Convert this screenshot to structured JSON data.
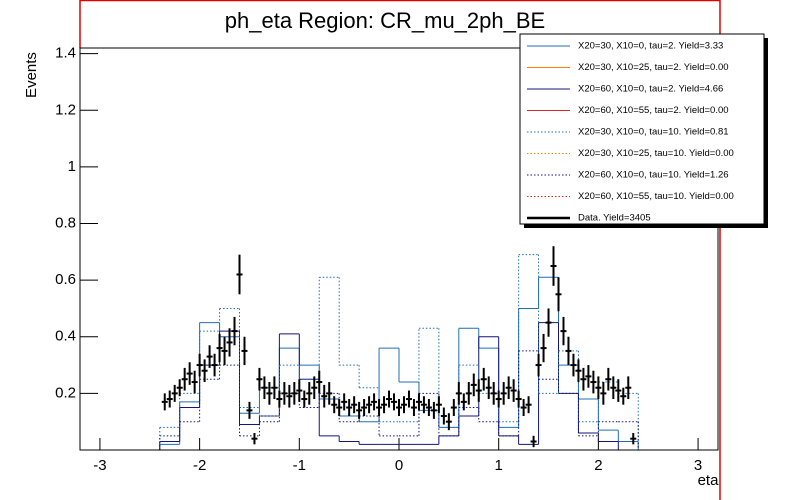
{
  "chart_data": {
    "type": "histogram",
    "title": "ph_eta Region: CR_mu_2ph_BE",
    "x_label": "eta",
    "y_label": "Events",
    "xlim": [
      -3.2,
      3.2
    ],
    "ylim": [
      0,
      1.42
    ],
    "xticks": [
      -3,
      -2,
      -1,
      0,
      1,
      2,
      3
    ],
    "yticks": [
      0.2,
      0.4,
      0.6,
      0.8,
      1,
      1.2,
      1.4
    ],
    "legend": "top-right",
    "bins": [
      -2.6,
      -2.4,
      -2.2,
      -2.0,
      -1.8,
      -1.6,
      -1.4,
      -1.2,
      -1.0,
      -0.8,
      -0.6,
      -0.4,
      -0.2,
      0.0,
      0.2,
      0.4,
      0.6,
      0.8,
      1.0,
      1.2,
      1.4,
      1.6,
      1.8,
      2.0,
      2.2,
      2.4,
      2.6
    ],
    "series": [
      {
        "name": "X20=30, X10=0, tau=2. Yield=3.33",
        "color": "#1f6fb4",
        "dashed": false,
        "values": [
          0,
          0.02,
          0.17,
          0.45,
          0.4,
          0.13,
          0.22,
          0.36,
          0.3,
          0.18,
          0.12,
          0.1,
          0.36,
          0.24,
          0.14,
          0.08,
          0.43,
          0.36,
          0.08,
          0.5,
          0.61,
          0.3,
          0.18,
          0.07,
          0.03,
          0
        ]
      },
      {
        "name": "X20=30, X10=25, tau=2. Yield=0.00",
        "color": "#ff7f0e",
        "dashed": false,
        "values": [
          0,
          0,
          0,
          0,
          0,
          0,
          0,
          0,
          0,
          0,
          0,
          0,
          0,
          0,
          0,
          0,
          0,
          0,
          0,
          0,
          0,
          0,
          0,
          0,
          0,
          0
        ]
      },
      {
        "name": "X20=60, X10=0, tau=2. Yield=4.66",
        "color": "#14147a",
        "dashed": false,
        "values": [
          0,
          0.03,
          0.15,
          0.3,
          0.42,
          0.09,
          0.12,
          0.41,
          0.25,
          0.05,
          0.03,
          0.02,
          0.02,
          0.02,
          0.02,
          0.05,
          0.12,
          0.4,
          0.05,
          0.02,
          0.45,
          0.2,
          0.06,
          0.03,
          0,
          0
        ]
      },
      {
        "name": "X20=60, X10=55, tau=2. Yield=0.00",
        "color": "#d62728",
        "dashed": false,
        "values": [
          0,
          0,
          0,
          0,
          0,
          0,
          0,
          0,
          0,
          0,
          0,
          0,
          0,
          0,
          0,
          0,
          0,
          0,
          0,
          0,
          0,
          0,
          0,
          0,
          0,
          0
        ]
      },
      {
        "name": "X20=30, X10=0, tau=10. Yield=0.81",
        "color": "#1f6fb4",
        "dashed": true,
        "values": [
          0,
          0.08,
          0.2,
          0.42,
          0.5,
          0.15,
          0.12,
          0.3,
          0.25,
          0.61,
          0.3,
          0.22,
          0.1,
          0.1,
          0.43,
          0.08,
          0.3,
          0.2,
          0.1,
          0.69,
          0.2,
          0.35,
          0.1,
          0.24,
          0.2,
          0
        ]
      },
      {
        "name": "X20=30, X10=25, tau=10. Yield=0.00",
        "color": "#ff7f0e",
        "dashed": true,
        "values": [
          0,
          0,
          0,
          0,
          0,
          0,
          0,
          0,
          0,
          0,
          0,
          0,
          0,
          0,
          0,
          0,
          0,
          0,
          0,
          0,
          0,
          0,
          0,
          0,
          0,
          0
        ]
      },
      {
        "name": "X20=60, X10=0, tau=10. Yield=1.26",
        "color": "#14147a",
        "dashed": true,
        "values": [
          0,
          0.05,
          0.1,
          0.25,
          0.3,
          0.05,
          0.1,
          0.2,
          0.15,
          0.2,
          0.1,
          0.12,
          0.05,
          0.05,
          0.2,
          0.05,
          0.15,
          0.1,
          0.05,
          0.35,
          0.25,
          0.2,
          0.05,
          0.1,
          0.1,
          0
        ]
      },
      {
        "name": "X20=60, X10=55, tau=10. Yield=0.00",
        "color": "#d62728",
        "dashed": true,
        "values": [
          0,
          0,
          0,
          0,
          0,
          0,
          0,
          0,
          0,
          0,
          0,
          0,
          0,
          0,
          0,
          0,
          0,
          0,
          0,
          0,
          0,
          0,
          0,
          0,
          0,
          0
        ]
      }
    ],
    "data": {
      "name": "Data. Yield=3405",
      "color": "#000000",
      "x": [
        -2.35,
        -2.3,
        -2.25,
        -2.2,
        -2.15,
        -2.1,
        -2.05,
        -2.0,
        -1.95,
        -1.9,
        -1.85,
        -1.8,
        -1.75,
        -1.7,
        -1.65,
        -1.6,
        -1.55,
        -1.5,
        -1.45,
        -1.4,
        -1.35,
        -1.3,
        -1.25,
        -1.2,
        -1.15,
        -1.1,
        -1.05,
        -1.0,
        -0.95,
        -0.9,
        -0.85,
        -0.8,
        -0.75,
        -0.7,
        -0.65,
        -0.6,
        -0.55,
        -0.5,
        -0.45,
        -0.4,
        -0.35,
        -0.3,
        -0.25,
        -0.2,
        -0.15,
        -0.1,
        -0.05,
        0,
        0.05,
        0.1,
        0.15,
        0.2,
        0.25,
        0.3,
        0.35,
        0.4,
        0.45,
        0.5,
        0.55,
        0.6,
        0.65,
        0.7,
        0.75,
        0.8,
        0.85,
        0.9,
        0.95,
        1.0,
        1.05,
        1.1,
        1.15,
        1.2,
        1.25,
        1.3,
        1.35,
        1.4,
        1.45,
        1.5,
        1.55,
        1.6,
        1.65,
        1.7,
        1.75,
        1.8,
        1.85,
        1.9,
        1.95,
        2.0,
        2.05,
        2.1,
        2.15,
        2.2,
        2.25,
        2.3,
        2.35
      ],
      "values": [
        0.17,
        0.18,
        0.2,
        0.22,
        0.25,
        0.27,
        0.24,
        0.3,
        0.28,
        0.33,
        0.3,
        0.36,
        0.35,
        0.38,
        0.42,
        0.62,
        0.35,
        0.14,
        0.04,
        0.25,
        0.22,
        0.2,
        0.22,
        0.18,
        0.2,
        0.19,
        0.2,
        0.21,
        0.18,
        0.2,
        0.22,
        0.24,
        0.19,
        0.2,
        0.16,
        0.15,
        0.17,
        0.15,
        0.16,
        0.14,
        0.15,
        0.16,
        0.17,
        0.15,
        0.16,
        0.18,
        0.17,
        0.15,
        0.16,
        0.18,
        0.15,
        0.17,
        0.16,
        0.15,
        0.14,
        0.16,
        0.12,
        0.1,
        0.15,
        0.2,
        0.17,
        0.2,
        0.23,
        0.21,
        0.25,
        0.22,
        0.2,
        0.18,
        0.2,
        0.22,
        0.21,
        0.18,
        0.15,
        0.16,
        0.03,
        0.3,
        0.36,
        0.45,
        0.65,
        0.55,
        0.42,
        0.35,
        0.3,
        0.28,
        0.25,
        0.26,
        0.24,
        0.22,
        0.2,
        0.25,
        0.22,
        0.21,
        0.19,
        0.22,
        0.04
      ],
      "errors": [
        0.03,
        0.03,
        0.03,
        0.03,
        0.04,
        0.04,
        0.04,
        0.04,
        0.04,
        0.04,
        0.04,
        0.05,
        0.05,
        0.05,
        0.05,
        0.07,
        0.05,
        0.03,
        0.02,
        0.04,
        0.04,
        0.04,
        0.04,
        0.03,
        0.04,
        0.04,
        0.04,
        0.04,
        0.03,
        0.04,
        0.04,
        0.04,
        0.04,
        0.04,
        0.03,
        0.03,
        0.03,
        0.03,
        0.03,
        0.03,
        0.03,
        0.03,
        0.03,
        0.03,
        0.03,
        0.03,
        0.03,
        0.03,
        0.03,
        0.03,
        0.03,
        0.03,
        0.03,
        0.03,
        0.03,
        0.03,
        0.03,
        0.03,
        0.03,
        0.04,
        0.03,
        0.04,
        0.04,
        0.04,
        0.04,
        0.04,
        0.04,
        0.03,
        0.04,
        0.04,
        0.04,
        0.03,
        0.03,
        0.03,
        0.02,
        0.04,
        0.05,
        0.05,
        0.07,
        0.06,
        0.05,
        0.05,
        0.04,
        0.04,
        0.04,
        0.04,
        0.04,
        0.04,
        0.04,
        0.04,
        0.04,
        0.04,
        0.03,
        0.04,
        0.02
      ]
    }
  }
}
